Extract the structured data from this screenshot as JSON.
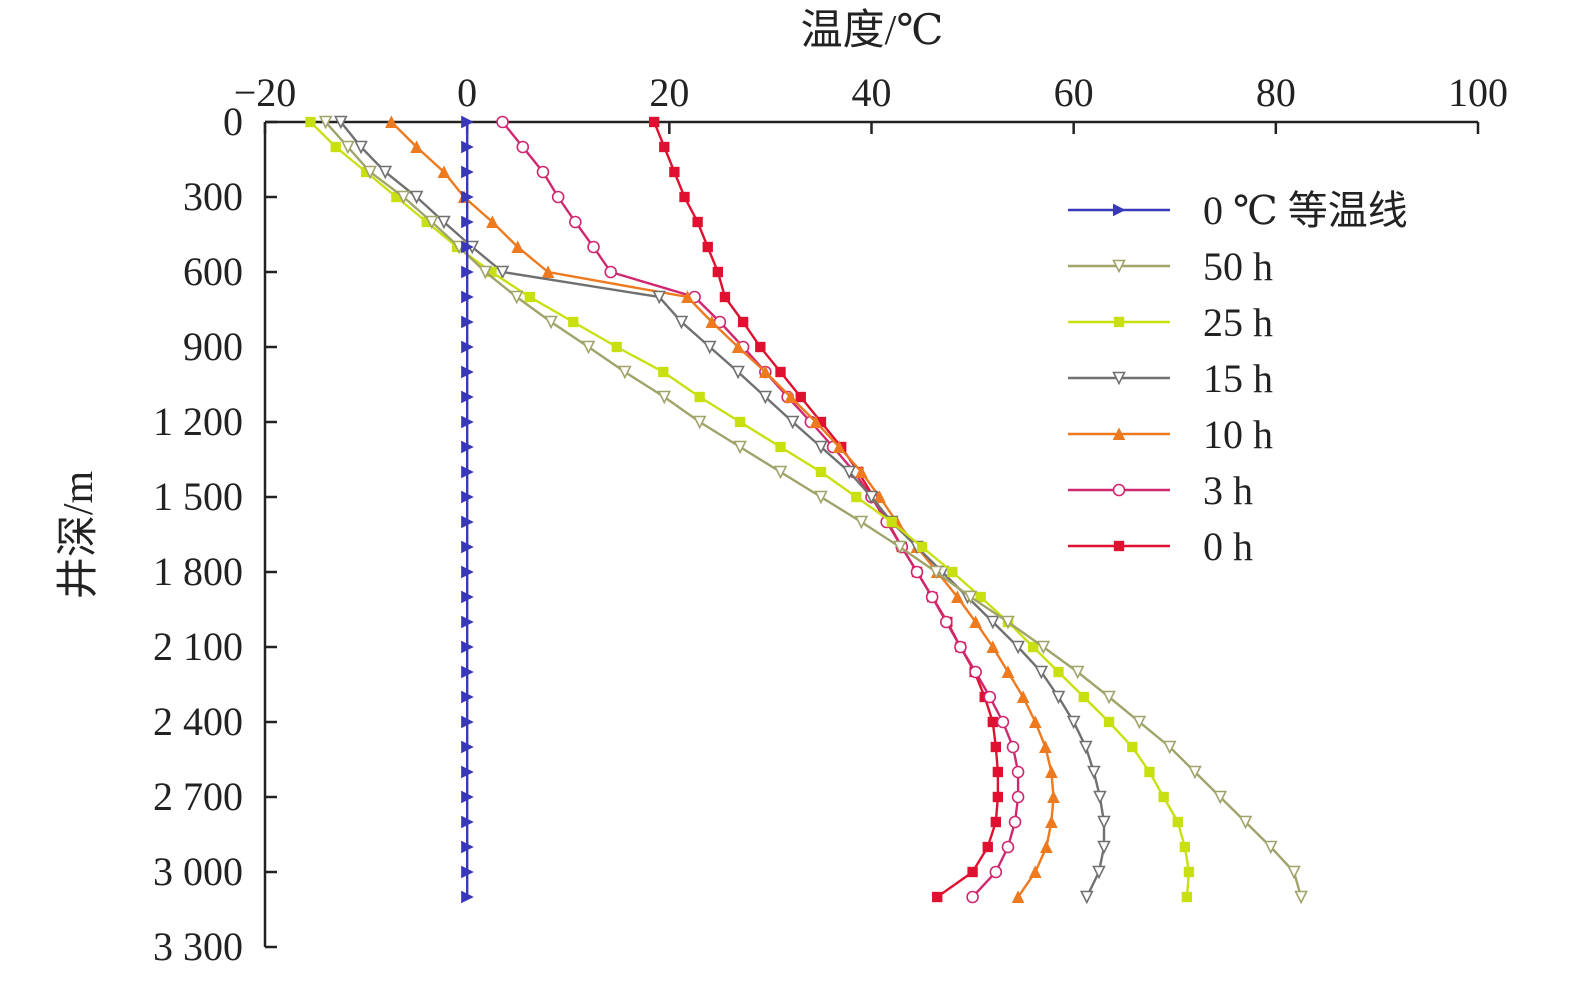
{
  "chart_data": {
    "type": "line",
    "xlabel": "温度/℃",
    "ylabel": "井深/m",
    "xlim": [
      -20,
      100
    ],
    "ylim": [
      0,
      3300
    ],
    "x_axis_position": "top",
    "y_axis_inverted": true,
    "grid": false,
    "legend_position": "top-right",
    "x_ticks": [
      -20,
      0,
      20,
      40,
      60,
      80,
      100
    ],
    "x_tick_labels": [
      "−20",
      "0",
      "20",
      "40",
      "60",
      "80",
      "100"
    ],
    "y_ticks": [
      0,
      300,
      600,
      900,
      1200,
      1500,
      1800,
      2100,
      2400,
      2700,
      3000,
      3300
    ],
    "y_tick_labels": [
      "0",
      "300",
      "600",
      "900",
      "1 200",
      "1 500",
      "1 800",
      "2 100",
      "2 400",
      "2 700",
      "3 000",
      "3 300"
    ],
    "depths": [
      0,
      100,
      200,
      300,
      400,
      500,
      600,
      700,
      800,
      900,
      1000,
      1100,
      1200,
      1300,
      1400,
      1500,
      1600,
      1700,
      1800,
      1900,
      2000,
      2100,
      2200,
      2300,
      2400,
      2500,
      2600,
      2700,
      2800,
      2900,
      3000,
      3100
    ],
    "series": [
      {
        "name": "0 ℃ 等温线",
        "color": "#3838b8",
        "marker": "triangle-right",
        "values": [
          0,
          0,
          0,
          0,
          0,
          0,
          0,
          0,
          0,
          0,
          0,
          0,
          0,
          0,
          0,
          0,
          0,
          0,
          0,
          0,
          0,
          0,
          0,
          0,
          0,
          0,
          0,
          0,
          0,
          0,
          0,
          0
        ]
      },
      {
        "name": "50 h",
        "color": "#a0a46a",
        "marker": "triangle-down-open",
        "values": [
          -14,
          -11.8,
          -9.6,
          -6.3,
          -3.5,
          -0.8,
          1.8,
          4.9,
          8.3,
          12,
          15.6,
          19.5,
          23,
          27,
          31,
          35,
          39,
          42.8,
          46.4,
          49.8,
          53.5,
          57,
          60.4,
          63.5,
          66.5,
          69.5,
          72,
          74.5,
          77,
          79.5,
          81.8,
          82.5
        ]
      },
      {
        "name": "25 h",
        "color": "#c8e010",
        "marker": "square",
        "values": [
          -15.5,
          -13,
          -10,
          -7,
          -4,
          -1,
          2.4,
          6.2,
          10.5,
          14.8,
          19.4,
          23,
          27,
          31,
          35,
          38.5,
          42,
          45,
          48,
          50.8,
          53.5,
          56,
          58.5,
          61,
          63.5,
          65.8,
          67.5,
          68.9,
          70.3,
          71,
          71.4,
          71.2
        ]
      },
      {
        "name": "15 h",
        "color": "#707070",
        "marker": "triangle-down-open",
        "values": [
          -12.5,
          -10.5,
          -8.1,
          -5,
          -2.3,
          0.5,
          3.5,
          19,
          21.2,
          24,
          26.8,
          29.5,
          32.2,
          35,
          37.8,
          40,
          42,
          44.5,
          47,
          49.5,
          52,
          54.5,
          56.8,
          58.5,
          60,
          61.2,
          62,
          62.6,
          63,
          63,
          62.5,
          61.3
        ]
      },
      {
        "name": "10 h",
        "color": "#ee7a20",
        "marker": "triangle-up",
        "values": [
          -7.5,
          -5,
          -2.3,
          -0.3,
          2.5,
          5,
          8,
          21.8,
          24.2,
          26.8,
          29.5,
          32,
          34.5,
          36.8,
          39,
          40.8,
          42.5,
          44.5,
          46.5,
          48.5,
          50.3,
          52,
          53.5,
          55,
          56.2,
          57.2,
          57.8,
          58,
          57.8,
          57.3,
          56.2,
          54.5
        ]
      },
      {
        "name": "3 h",
        "color": "#d02870",
        "marker": "circle-open",
        "values": [
          3.5,
          5.5,
          7.5,
          9,
          10.7,
          12.5,
          14.2,
          22.5,
          25,
          27.3,
          29.5,
          31.7,
          34,
          36.2,
          38.3,
          40,
          41.5,
          43,
          44.5,
          46,
          47.4,
          48.8,
          50.3,
          51.7,
          53,
          54,
          54.5,
          54.5,
          54.2,
          53.5,
          52.3,
          50
        ]
      },
      {
        "name": "0 h",
        "color": "#e01030",
        "marker": "square",
        "values": [
          18.5,
          19.5,
          20.5,
          21.5,
          22.8,
          23.8,
          24.8,
          25.5,
          27.3,
          29,
          31,
          33,
          35,
          37,
          38.7,
          40.2,
          41.6,
          43,
          44.5,
          46,
          47.5,
          48.8,
          50.2,
          51.2,
          52,
          52.3,
          52.5,
          52.5,
          52.3,
          51.5,
          50,
          46.5
        ]
      }
    ]
  }
}
